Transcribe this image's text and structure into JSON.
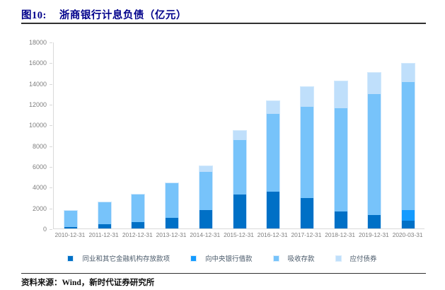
{
  "header": {
    "figure_label": "图10:",
    "title": "浙商银行计息负债（亿元）"
  },
  "footer": {
    "text": "资料来源：Wind，新时代证券研究所"
  },
  "colors": {
    "title_navy": "#00008B",
    "rule": "#303030",
    "axis_line": "#d9d9d9",
    "tick_label": "#7f7f7f",
    "legend_text": "#4a5a6a"
  },
  "chart_data": {
    "type": "bar",
    "stacked": true,
    "title": "浙商银行计息负债（亿元）",
    "xlabel": "",
    "ylabel": "",
    "ylim": [
      0,
      18000
    ],
    "ytick_step": 2000,
    "grid": false,
    "legend_position": "bottom",
    "categories": [
      "2010-12-31",
      "2011-12-31",
      "2012-12-31",
      "2013-12-31",
      "2014-12-31",
      "2015-12-31",
      "2016-12-31",
      "2017-12-31",
      "2018-12-31",
      "2019-12-31",
      "2020-03-31"
    ],
    "series": [
      {
        "name": "同业和其它金融机构存放款项",
        "color": "#0070C6",
        "values": [
          170,
          430,
          600,
          1050,
          1740,
          3280,
          3570,
          2930,
          1670,
          1320,
          770
        ]
      },
      {
        "name": "向中央银行借款",
        "color": "#149BFF",
        "values": [
          0,
          0,
          0,
          0,
          0,
          0,
          0,
          0,
          0,
          0,
          1030
        ]
      },
      {
        "name": "吸收存款",
        "color": "#77C3FA",
        "values": [
          1570,
          2120,
          2700,
          3310,
          3730,
          5220,
          7500,
          8770,
          9910,
          11620,
          12310
        ]
      },
      {
        "name": "应付债券",
        "color": "#BFDFFB",
        "values": [
          0,
          0,
          0,
          0,
          530,
          900,
          1200,
          1950,
          2580,
          2090,
          1790
        ]
      }
    ],
    "totals": [
      1740,
      2550,
      3300,
      4360,
      6000,
      9400,
      12270,
      13650,
      14160,
      15030,
      15900
    ]
  }
}
